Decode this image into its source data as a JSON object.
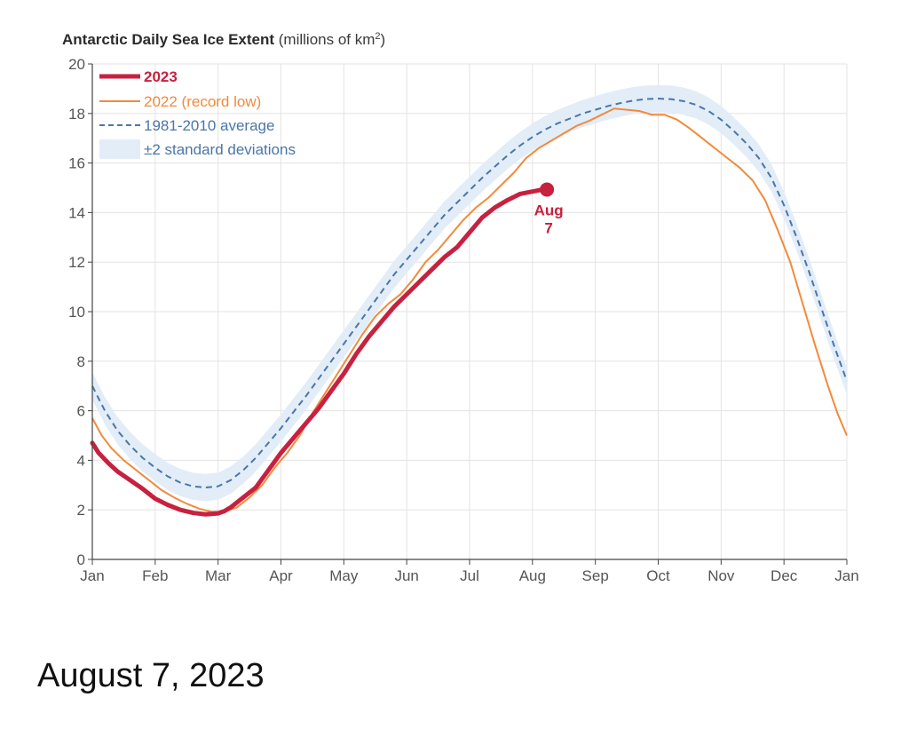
{
  "caption": "August 7, 2023",
  "chart_data": {
    "type": "line",
    "title_bold": "Antarctic Daily Sea Ice Extent",
    "title_unit_prefix": " (millions of km",
    "title_unit_sup": "2",
    "title_unit_suffix": ")",
    "xlabel": "",
    "ylabel": "",
    "ylim": [
      0,
      20
    ],
    "yticks": [
      0,
      2,
      4,
      6,
      8,
      10,
      12,
      14,
      16,
      18,
      20
    ],
    "xlim": [
      0,
      12
    ],
    "xtick_labels": [
      "Jan",
      "Feb",
      "Mar",
      "Apr",
      "May",
      "Jun",
      "Jul",
      "Aug",
      "Sep",
      "Oct",
      "Nov",
      "Dec",
      "Jan"
    ],
    "grid": true,
    "legend_position": "top-left",
    "colors": {
      "series_2023": "#c8203f",
      "series_2022": "#f28a3c",
      "average": "#4a76a8",
      "band": "#e2edf8",
      "grid": "#e3e3e3"
    },
    "series": [
      {
        "name": "2023",
        "x": [
          0,
          0.1,
          0.25,
          0.4,
          0.6,
          0.8,
          1.0,
          1.2,
          1.4,
          1.6,
          1.8,
          2.0,
          2.1,
          2.2,
          2.4,
          2.6,
          2.8,
          3.0,
          3.2,
          3.4,
          3.6,
          3.8,
          4.0,
          4.2,
          4.4,
          4.6,
          4.8,
          5.0,
          5.2,
          5.4,
          5.6,
          5.8,
          6.0,
          6.2,
          6.4,
          6.6,
          6.8,
          7.0,
          7.1,
          7.2
        ],
        "values": [
          4.7,
          4.3,
          3.9,
          3.55,
          3.2,
          2.85,
          2.45,
          2.2,
          2.0,
          1.88,
          1.82,
          1.86,
          1.95,
          2.1,
          2.5,
          2.9,
          3.6,
          4.3,
          4.9,
          5.5,
          6.1,
          6.8,
          7.5,
          8.3,
          9.0,
          9.6,
          10.2,
          10.7,
          11.2,
          11.7,
          12.2,
          12.6,
          13.2,
          13.8,
          14.2,
          14.5,
          14.75,
          14.85,
          14.9,
          14.93
        ]
      },
      {
        "name": "2022 (record low)",
        "x": [
          0,
          0.15,
          0.3,
          0.5,
          0.7,
          0.9,
          1.1,
          1.3,
          1.5,
          1.7,
          1.9,
          2.1,
          2.3,
          2.5,
          2.7,
          2.9,
          3.1,
          3.3,
          3.5,
          3.7,
          3.9,
          4.1,
          4.3,
          4.5,
          4.7,
          4.9,
          5.1,
          5.3,
          5.5,
          5.7,
          5.9,
          6.1,
          6.3,
          6.5,
          6.7,
          6.9,
          7.1,
          7.3,
          7.5,
          7.7,
          7.9,
          8.1,
          8.3,
          8.5,
          8.7,
          8.9,
          9.1,
          9.3,
          9.5,
          9.7,
          9.9,
          10.1,
          10.3,
          10.5,
          10.7,
          10.9,
          11.1,
          11.3,
          11.5,
          11.7,
          11.85,
          12.0
        ],
        "values": [
          5.7,
          5.0,
          4.5,
          4.0,
          3.6,
          3.2,
          2.8,
          2.5,
          2.25,
          2.05,
          1.92,
          1.92,
          2.1,
          2.5,
          3.0,
          3.7,
          4.3,
          5.0,
          5.9,
          6.7,
          7.5,
          8.3,
          9.1,
          9.8,
          10.3,
          10.7,
          11.3,
          12.0,
          12.5,
          13.1,
          13.7,
          14.2,
          14.6,
          15.1,
          15.6,
          16.2,
          16.6,
          16.9,
          17.2,
          17.5,
          17.7,
          17.95,
          18.2,
          18.15,
          18.1,
          17.95,
          17.95,
          17.75,
          17.4,
          17.0,
          16.6,
          16.2,
          15.8,
          15.3,
          14.5,
          13.3,
          12.0,
          10.3,
          8.6,
          7.0,
          5.9,
          5.0
        ]
      },
      {
        "name": "1981-2010 average",
        "x": [
          0,
          0.2,
          0.4,
          0.6,
          0.8,
          1.0,
          1.2,
          1.4,
          1.6,
          1.8,
          2.0,
          2.2,
          2.4,
          2.6,
          2.8,
          3.0,
          3.2,
          3.4,
          3.6,
          3.8,
          4.0,
          4.2,
          4.4,
          4.6,
          4.8,
          5.0,
          5.2,
          5.4,
          5.6,
          5.8,
          6.0,
          6.2,
          6.4,
          6.6,
          6.8,
          7.0,
          7.2,
          7.4,
          7.6,
          7.8,
          8.0,
          8.2,
          8.4,
          8.6,
          8.8,
          9.0,
          9.2,
          9.4,
          9.6,
          9.8,
          10.0,
          10.2,
          10.4,
          10.6,
          10.8,
          11.0,
          11.2,
          11.4,
          11.6,
          11.8,
          12.0
        ],
        "values": [
          7.0,
          6.0,
          5.2,
          4.6,
          4.1,
          3.7,
          3.35,
          3.1,
          2.95,
          2.9,
          2.95,
          3.2,
          3.6,
          4.1,
          4.7,
          5.3,
          5.95,
          6.6,
          7.3,
          8.0,
          8.7,
          9.4,
          10.1,
          10.8,
          11.5,
          12.1,
          12.7,
          13.3,
          13.9,
          14.4,
          14.9,
          15.4,
          15.85,
          16.3,
          16.7,
          17.05,
          17.35,
          17.6,
          17.8,
          18.0,
          18.15,
          18.3,
          18.42,
          18.52,
          18.58,
          18.6,
          18.58,
          18.5,
          18.35,
          18.1,
          17.75,
          17.3,
          16.8,
          16.2,
          15.4,
          14.3,
          13.0,
          11.6,
          10.1,
          8.6,
          7.2
        ]
      }
    ],
    "band_halfwidth": 0.55,
    "band_label": "±2 standard deviations",
    "annotation": {
      "x": 7.23,
      "y": 14.93,
      "line1": "Aug",
      "line2": "7"
    }
  }
}
